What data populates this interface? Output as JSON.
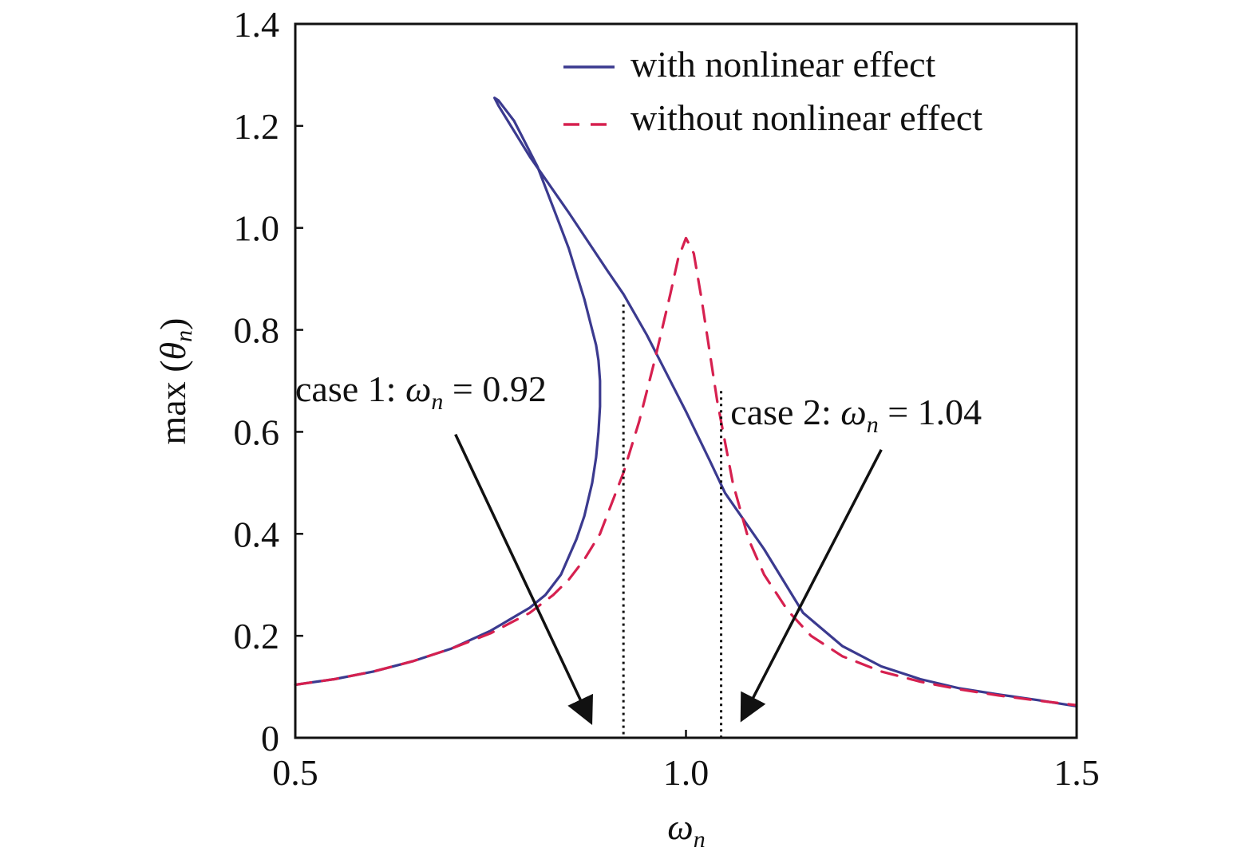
{
  "chart_data": {
    "type": "line",
    "title": "",
    "xlabel": {
      "symbol": "ω",
      "sub": "n"
    },
    "ylabel": {
      "prefix": "max (",
      "symbol": "θ",
      "sub": "n",
      "suffix": ")"
    },
    "xlim": [
      0.5,
      1.5
    ],
    "ylim": [
      0,
      1.4
    ],
    "xticks": [
      0.5,
      1.0,
      1.5
    ],
    "xtick_labels": [
      "0.5",
      "1.0",
      "1.5"
    ],
    "yticks": [
      0,
      0.2,
      0.4,
      0.6,
      0.8,
      1.0,
      1.2,
      1.4
    ],
    "ytick_labels": [
      "0",
      "0.2",
      "0.4",
      "0.6",
      "0.8",
      "1.0",
      "1.2",
      "1.4"
    ],
    "grid": false,
    "legend_position": "top-right",
    "series": [
      {
        "name": "with nonlinear effect",
        "color": "#3b3a8f",
        "dash": "solid",
        "x": [
          0.5,
          0.55,
          0.6,
          0.65,
          0.7,
          0.75,
          0.8,
          0.82,
          0.84,
          0.86,
          0.87,
          0.88,
          0.885,
          0.888,
          0.89,
          0.89,
          0.888,
          0.885,
          0.88,
          0.87,
          0.86,
          0.85,
          0.84,
          0.83,
          0.82,
          0.81,
          0.8,
          0.79,
          0.78,
          0.77,
          0.76,
          0.755,
          0.76,
          0.8,
          0.85,
          0.9,
          0.92,
          0.95,
          0.97,
          1.0,
          1.03,
          1.05,
          1.1,
          1.15,
          1.2,
          1.25,
          1.3,
          1.35,
          1.4,
          1.45,
          1.5
        ],
        "y": [
          0.104,
          0.115,
          0.13,
          0.15,
          0.175,
          0.21,
          0.255,
          0.28,
          0.32,
          0.39,
          0.435,
          0.5,
          0.55,
          0.6,
          0.65,
          0.7,
          0.74,
          0.77,
          0.8,
          0.86,
          0.91,
          0.96,
          1.0,
          1.04,
          1.08,
          1.12,
          1.15,
          1.18,
          1.21,
          1.23,
          1.25,
          1.255,
          1.24,
          1.14,
          1.03,
          0.915,
          0.87,
          0.79,
          0.73,
          0.64,
          0.545,
          0.48,
          0.37,
          0.245,
          0.18,
          0.14,
          0.115,
          0.097,
          0.085,
          0.074,
          0.062
        ]
      },
      {
        "name": "without nonlinear effect",
        "color": "#d6204f",
        "dash": "dashed",
        "x": [
          0.5,
          0.55,
          0.6,
          0.65,
          0.7,
          0.75,
          0.8,
          0.83,
          0.85,
          0.87,
          0.89,
          0.9,
          0.92,
          0.94,
          0.96,
          0.98,
          0.99,
          1.0,
          1.01,
          1.02,
          1.04,
          1.06,
          1.08,
          1.1,
          1.13,
          1.16,
          1.2,
          1.25,
          1.3,
          1.35,
          1.4,
          1.45,
          1.5
        ],
        "y": [
          0.104,
          0.115,
          0.13,
          0.15,
          0.175,
          0.205,
          0.245,
          0.28,
          0.31,
          0.35,
          0.4,
          0.44,
          0.52,
          0.62,
          0.74,
          0.87,
          0.94,
          0.98,
          0.95,
          0.86,
          0.66,
          0.5,
          0.39,
          0.32,
          0.25,
          0.2,
          0.16,
          0.13,
          0.11,
          0.095,
          0.083,
          0.073,
          0.064
        ]
      }
    ],
    "vlines": [
      {
        "x": 0.92,
        "y_top": 0.85
      },
      {
        "x": 1.045,
        "y_top": 0.68
      }
    ],
    "annotations": [
      {
        "prefix": "case 1: ",
        "symbol": "ω",
        "sub": "n",
        "suffix": " = 0.92",
        "x": 0.5,
        "y": 0.66,
        "arrow_from": [
          0.705,
          0.595
        ],
        "arrow_to": [
          0.877,
          0.035
        ]
      },
      {
        "prefix": "case 2: ",
        "symbol": "ω",
        "sub": "n",
        "suffix": " = 1.04",
        "x": 1.057,
        "y": 0.615,
        "arrow_from": [
          1.25,
          0.565
        ],
        "arrow_to": [
          1.073,
          0.04
        ]
      }
    ]
  }
}
